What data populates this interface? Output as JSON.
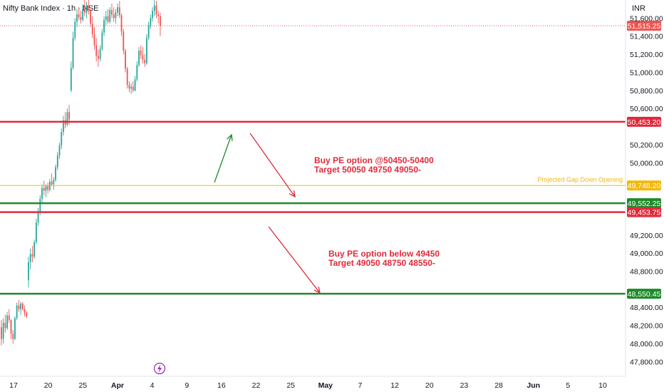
{
  "header": {
    "title": "Nifty Bank Index · 1h · NSE",
    "currency": "INR"
  },
  "colors": {
    "up": "#26a69a",
    "down": "#ef5350",
    "resistance": "#e02a3b",
    "support": "#1f8a2a",
    "projected": "#f2b90c",
    "arrow_down": "#e02a3b",
    "arrow_up": "#1f8a2a",
    "lightning": "#9c27b0"
  },
  "chart_data": {
    "type": "candlestick",
    "ylim": [
      47700,
      51800
    ],
    "y_ticks": [
      {
        "value": 51600,
        "label": "51,600.00"
      },
      {
        "value": 51400,
        "label": "51,400.00"
      },
      {
        "value": 51200,
        "label": "51,200.00"
      },
      {
        "value": 51000,
        "label": "51,000.00"
      },
      {
        "value": 50800,
        "label": "50,800.00"
      },
      {
        "value": 50600,
        "label": "50,600.00"
      },
      {
        "value": 50200,
        "label": "50,200.00"
      },
      {
        "value": 50000,
        "label": "50,000.00"
      },
      {
        "value": 49200,
        "label": "49,200.00"
      },
      {
        "value": 49000,
        "label": "49,000.00"
      },
      {
        "value": 48800,
        "label": "48,800.00"
      },
      {
        "value": 48400,
        "label": "48,400.00"
      },
      {
        "value": 48200,
        "label": "48,200.00"
      },
      {
        "value": 48000,
        "label": "48,000.00"
      },
      {
        "value": 47800,
        "label": "47,800.00"
      }
    ],
    "x_ticks": [
      {
        "label": "17",
        "bold": false
      },
      {
        "label": "20",
        "bold": false
      },
      {
        "label": "25",
        "bold": false
      },
      {
        "label": "Apr",
        "bold": true
      },
      {
        "label": "4",
        "bold": false
      },
      {
        "label": "9",
        "bold": false
      },
      {
        "label": "16",
        "bold": false
      },
      {
        "label": "22",
        "bold": false
      },
      {
        "label": "25",
        "bold": false
      },
      {
        "label": "May",
        "bold": true
      },
      {
        "label": "7",
        "bold": false
      },
      {
        "label": "12",
        "bold": false
      },
      {
        "label": "20",
        "bold": false
      },
      {
        "label": "23",
        "bold": false
      },
      {
        "label": "28",
        "bold": false
      },
      {
        "label": "Jun",
        "bold": true
      },
      {
        "label": "5",
        "bold": false
      },
      {
        "label": "10",
        "bold": false
      }
    ],
    "current_price": {
      "value": 51515.25,
      "label": "51,515.25"
    },
    "levels": [
      {
        "value": 50453.2,
        "label": "50,453.20",
        "kind": "resistance"
      },
      {
        "value": 49748.2,
        "label": "49,748.20",
        "kind": "projected"
      },
      {
        "value": 49552.25,
        "label": "49,552.25",
        "kind": "support"
      },
      {
        "value": 49453.75,
        "label": "49,453.75",
        "kind": "resistance"
      },
      {
        "value": 48550.45,
        "label": "48,550.45",
        "kind": "support"
      }
    ],
    "projected_label": "Projected Gap Down Opening",
    "candles": [
      {
        "o": 48180,
        "h": 48260,
        "l": 47980,
        "c": 48050
      },
      {
        "o": 48050,
        "h": 48280,
        "l": 48000,
        "c": 48230
      },
      {
        "o": 48230,
        "h": 48320,
        "l": 48120,
        "c": 48170
      },
      {
        "o": 48170,
        "h": 48350,
        "l": 48150,
        "c": 48310
      },
      {
        "o": 48310,
        "h": 48380,
        "l": 48230,
        "c": 48260
      },
      {
        "o": 48260,
        "h": 48270,
        "l": 48050,
        "c": 48110
      },
      {
        "o": 48110,
        "h": 48150,
        "l": 48000,
        "c": 48050
      },
      {
        "o": 48050,
        "h": 48300,
        "l": 48040,
        "c": 48280
      },
      {
        "o": 48280,
        "h": 48450,
        "l": 48260,
        "c": 48420
      },
      {
        "o": 48420,
        "h": 48480,
        "l": 48350,
        "c": 48380
      },
      {
        "o": 48380,
        "h": 48460,
        "l": 48320,
        "c": 48440
      },
      {
        "o": 48440,
        "h": 48460,
        "l": 48360,
        "c": 48380
      },
      {
        "o": 48380,
        "h": 48420,
        "l": 48300,
        "c": 48340
      },
      {
        "o": 48340,
        "h": 48360,
        "l": 48280,
        "c": 48300
      },
      {
        "o": 48700,
        "h": 48960,
        "l": 48620,
        "c": 48900
      },
      {
        "o": 48900,
        "h": 49050,
        "l": 48820,
        "c": 48990
      },
      {
        "o": 48990,
        "h": 49080,
        "l": 48900,
        "c": 48960
      },
      {
        "o": 48960,
        "h": 49150,
        "l": 48940,
        "c": 49120
      },
      {
        "o": 49120,
        "h": 49380,
        "l": 49100,
        "c": 49340
      },
      {
        "o": 49340,
        "h": 49500,
        "l": 49300,
        "c": 49460
      },
      {
        "o": 49460,
        "h": 49640,
        "l": 49420,
        "c": 49600
      },
      {
        "o": 49600,
        "h": 49760,
        "l": 49560,
        "c": 49720
      },
      {
        "o": 49720,
        "h": 49800,
        "l": 49640,
        "c": 49690
      },
      {
        "o": 49690,
        "h": 49760,
        "l": 49620,
        "c": 49740
      },
      {
        "o": 49740,
        "h": 49780,
        "l": 49660,
        "c": 49700
      },
      {
        "o": 49700,
        "h": 49820,
        "l": 49680,
        "c": 49790
      },
      {
        "o": 49790,
        "h": 49880,
        "l": 49740,
        "c": 49760
      },
      {
        "o": 49760,
        "h": 49840,
        "l": 49700,
        "c": 49810
      },
      {
        "o": 49810,
        "h": 49980,
        "l": 49790,
        "c": 49950
      },
      {
        "o": 49950,
        "h": 50120,
        "l": 49920,
        "c": 50080
      },
      {
        "o": 50080,
        "h": 50220,
        "l": 50040,
        "c": 50190
      },
      {
        "o": 50190,
        "h": 50380,
        "l": 50150,
        "c": 50340
      },
      {
        "o": 50340,
        "h": 50520,
        "l": 50300,
        "c": 50470
      },
      {
        "o": 50470,
        "h": 50560,
        "l": 50380,
        "c": 50420
      },
      {
        "o": 50420,
        "h": 50600,
        "l": 50400,
        "c": 50560
      },
      {
        "o": 50560,
        "h": 50640,
        "l": 50420,
        "c": 50480
      },
      {
        "o": 50800,
        "h": 51120,
        "l": 50780,
        "c": 51050
      },
      {
        "o": 51050,
        "h": 51450,
        "l": 51030,
        "c": 51380
      },
      {
        "o": 51380,
        "h": 51600,
        "l": 51350,
        "c": 51560
      },
      {
        "o": 51560,
        "h": 51700,
        "l": 51500,
        "c": 51640
      },
      {
        "o": 51640,
        "h": 51720,
        "l": 51580,
        "c": 51610
      },
      {
        "o": 51610,
        "h": 51680,
        "l": 51540,
        "c": 51580
      },
      {
        "o": 51580,
        "h": 51750,
        "l": 51560,
        "c": 51700
      },
      {
        "o": 51700,
        "h": 51800,
        "l": 51620,
        "c": 51660
      },
      {
        "o": 51660,
        "h": 51780,
        "l": 51600,
        "c": 51740
      },
      {
        "o": 51740,
        "h": 51800,
        "l": 51640,
        "c": 51680
      },
      {
        "o": 51680,
        "h": 51700,
        "l": 51500,
        "c": 51540
      },
      {
        "o": 51540,
        "h": 51620,
        "l": 51380,
        "c": 51420
      },
      {
        "o": 51420,
        "h": 51500,
        "l": 51250,
        "c": 51300
      },
      {
        "o": 51300,
        "h": 51380,
        "l": 51120,
        "c": 51180
      },
      {
        "o": 51180,
        "h": 51250,
        "l": 51060,
        "c": 51150
      },
      {
        "o": 51150,
        "h": 51300,
        "l": 51120,
        "c": 51260
      },
      {
        "o": 51260,
        "h": 51480,
        "l": 51240,
        "c": 51440
      },
      {
        "o": 51440,
        "h": 51620,
        "l": 51400,
        "c": 51580
      },
      {
        "o": 51580,
        "h": 51680,
        "l": 51520,
        "c": 51620
      },
      {
        "o": 51620,
        "h": 51700,
        "l": 51540,
        "c": 51560
      },
      {
        "o": 51560,
        "h": 51720,
        "l": 51540,
        "c": 51690
      },
      {
        "o": 51690,
        "h": 51760,
        "l": 51600,
        "c": 51640
      },
      {
        "o": 51640,
        "h": 51720,
        "l": 51560,
        "c": 51600
      },
      {
        "o": 51600,
        "h": 51700,
        "l": 51540,
        "c": 51660
      },
      {
        "o": 51660,
        "h": 51760,
        "l": 51620,
        "c": 51720
      },
      {
        "o": 51720,
        "h": 51790,
        "l": 51600,
        "c": 51630
      },
      {
        "o": 51630,
        "h": 51650,
        "l": 51400,
        "c": 51450
      },
      {
        "o": 51450,
        "h": 51480,
        "l": 51200,
        "c": 51240
      },
      {
        "o": 51240,
        "h": 51260,
        "l": 51000,
        "c": 51040
      },
      {
        "o": 51040,
        "h": 51060,
        "l": 50820,
        "c": 50860
      },
      {
        "o": 50860,
        "h": 50900,
        "l": 50780,
        "c": 50820
      },
      {
        "o": 50820,
        "h": 50880,
        "l": 50760,
        "c": 50840
      },
      {
        "o": 50840,
        "h": 50900,
        "l": 50780,
        "c": 50800
      },
      {
        "o": 50800,
        "h": 50960,
        "l": 50790,
        "c": 50920
      },
      {
        "o": 50920,
        "h": 51120,
        "l": 50900,
        "c": 51080
      },
      {
        "o": 51080,
        "h": 51280,
        "l": 51060,
        "c": 51240
      },
      {
        "o": 51240,
        "h": 51300,
        "l": 51150,
        "c": 51190
      },
      {
        "o": 51190,
        "h": 51280,
        "l": 51100,
        "c": 51140
      },
      {
        "o": 51140,
        "h": 51200,
        "l": 51060,
        "c": 51100
      },
      {
        "o": 51100,
        "h": 51420,
        "l": 51080,
        "c": 51380
      },
      {
        "o": 51380,
        "h": 51560,
        "l": 51360,
        "c": 51520
      },
      {
        "o": 51520,
        "h": 51640,
        "l": 51480,
        "c": 51600
      },
      {
        "o": 51600,
        "h": 51720,
        "l": 51560,
        "c": 51680
      },
      {
        "o": 51680,
        "h": 51800,
        "l": 51620,
        "c": 51740
      },
      {
        "o": 51740,
        "h": 51790,
        "l": 51600,
        "c": 51640
      },
      {
        "o": 51640,
        "h": 51680,
        "l": 51540,
        "c": 51620
      },
      {
        "o": 51620,
        "h": 51660,
        "l": 51400,
        "c": 51515.25
      }
    ],
    "annotations": [
      {
        "lines": [
          "Buy PE option @50450-50400",
          "Target 50050  49750 49050-"
        ]
      },
      {
        "lines": [
          "Buy PE option below 49450",
          "Target 49050 48750 48550-"
        ]
      }
    ],
    "grid": false,
    "legend": "none"
  }
}
